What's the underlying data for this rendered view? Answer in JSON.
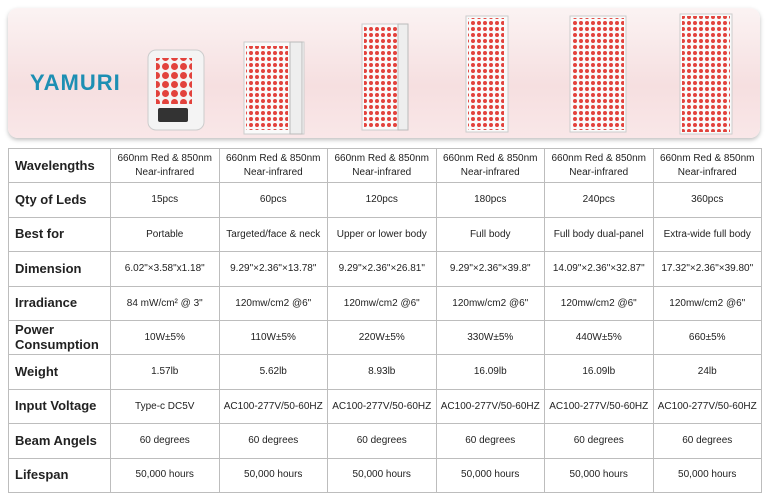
{
  "header": {
    "logo": "YAMURI"
  },
  "table": {
    "rows": [
      [
        "Wavelengths",
        "660nm Red & 850nm Near-infrared",
        "660nm Red & 850nm Near-infrared",
        "660nm Red & 850nm Near-infrared",
        "660nm Red & 850nm Near-infrared",
        "660nm Red & 850nm Near-infrared",
        "660nm Red & 850nm Near-infrared"
      ],
      [
        "Qty of Leds",
        "15pcs",
        "60pcs",
        "120pcs",
        "180pcs",
        "240pcs",
        "360pcs"
      ],
      [
        "Best for",
        "Portable",
        "Targeted/face & neck",
        "Upper or lower body",
        "Full body",
        "Full body dual-panel",
        "Extra-wide full body"
      ],
      [
        "Dimension",
        "6.02\"×3.58\"x1.18\"",
        "9.29\"×2.36\"×13.78\"",
        "9.29\"×2.36\"×26.81\"",
        "9.29\"×2.36\"×39.8\"",
        "14.09\"×2.36\"×32.87\"",
        "17.32\"×2.36\"×39.80\""
      ],
      [
        "Irradiance",
        "84 mW/cm² @ 3\"",
        "120mw/cm2 @6\"",
        "120mw/cm2 @6\"",
        "120mw/cm2 @6\"",
        "120mw/cm2 @6\"",
        "120mw/cm2 @6\""
      ],
      [
        "Power Consumption",
        "10W±5%",
        "110W±5%",
        "220W±5%",
        "330W±5%",
        "440W±5%",
        "660±5%"
      ],
      [
        "Weight",
        "1.57lb",
        "5.62lb",
        "8.93lb",
        "16.09lb",
        "16.09lb",
        "24lb"
      ],
      [
        "Input Voltage",
        "Type-c  DC5V",
        "AC100-277V/50-60HZ",
        "AC100-277V/50-60HZ",
        "AC100-277V/50-60HZ",
        "AC100-277V/50-60HZ",
        "AC100-277V/50-60HZ"
      ],
      [
        "Beam Angels",
        "60 degrees",
        "60 degrees",
        "60 degrees",
        "60 degrees",
        "60 degrees",
        "60 degrees"
      ],
      [
        "Lifespan",
        "50,000 hours",
        "50,000 hours",
        "50,000 hours",
        "50,000 hours",
        "50,000 hours",
        "50,000 hours"
      ]
    ]
  }
}
